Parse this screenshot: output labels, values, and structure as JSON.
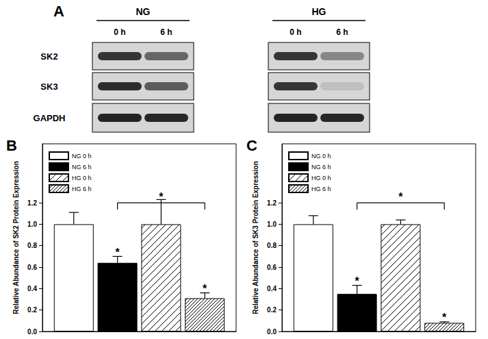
{
  "panel_a": {
    "label": "A",
    "blots": [
      {
        "group": "NG",
        "lanes": [
          "0 h",
          "6 h"
        ]
      },
      {
        "group": "HG",
        "lanes": [
          "0 h",
          "6 h"
        ]
      }
    ],
    "rows": [
      "SK2",
      "SK3",
      "GAPDH"
    ]
  },
  "chart_data": [
    {
      "type": "bar",
      "title": "B",
      "ylabel": "Relative Abundance of SK2 Protein Expression",
      "categories": [
        null
      ],
      "series": [
        {
          "name": "NG 0 h",
          "color": "#ffffff",
          "values": [
            1.0
          ],
          "errors": [
            0.11
          ]
        },
        {
          "name": "NG 6 h",
          "color": "#000000",
          "values": [
            0.64
          ],
          "errors": [
            0.06
          ]
        },
        {
          "name": "HG 0 h",
          "color": "#ffffff",
          "values": [
            1.0
          ],
          "errors": [
            0.23
          ]
        },
        {
          "name": "HG 6 h",
          "color": "#ffffff",
          "values": [
            0.31
          ],
          "errors": [
            0.05
          ]
        }
      ],
      "annotations": [
        {
          "series": "NG 6 h",
          "text": "*"
        },
        {
          "series": "HG 6 h",
          "text": "*"
        }
      ],
      "brackets": [
        {
          "from": "NG 6 h",
          "to": "HG 6 h",
          "y": 1.2,
          "text": "*"
        }
      ],
      "ylim": [
        0,
        1.75
      ],
      "yticks": [
        {
          "value": 0,
          "label": "0.0"
        },
        {
          "value": 0.2,
          "label": "0.2"
        },
        {
          "value": 0.4,
          "label": "0.4"
        },
        {
          "value": 0.6,
          "label": "0.6"
        },
        {
          "value": 0.8,
          "label": "0.8"
        },
        {
          "value": 1.0,
          "label": "1.0"
        },
        {
          "value": 1.2,
          "label": "1.2"
        }
      ],
      "grid": false,
      "legend": "upper left",
      "tick_labels": "y"
    },
    {
      "type": "bar",
      "title": "C",
      "ylabel": "Relative Abundance of SK3 Protein Expression",
      "categories": [
        null
      ],
      "series": [
        {
          "name": "NG 0 h",
          "color": "#ffffff",
          "values": [
            1.0
          ],
          "errors": [
            0.08
          ]
        },
        {
          "name": "NG 6 h",
          "color": "#000000",
          "values": [
            0.35
          ],
          "errors": [
            0.08
          ]
        },
        {
          "name": "HG 0 h",
          "color": "#ffffff",
          "values": [
            1.0
          ],
          "errors": [
            0.04
          ]
        },
        {
          "name": "HG 6 h",
          "color": "#ffffff",
          "values": [
            0.08
          ],
          "errors": [
            0.01
          ]
        }
      ],
      "annotations": [
        {
          "series": "NG 6 h",
          "text": "*"
        },
        {
          "series": "HG 6 h",
          "text": "*"
        }
      ],
      "brackets": [
        {
          "from": "NG 6 h",
          "to": "HG 6 h",
          "y": 1.2,
          "text": "*"
        }
      ],
      "ylim": [
        0,
        1.75
      ],
      "yticks": [
        {
          "value": 0,
          "label": "0.0"
        },
        {
          "value": 0.2,
          "label": "0.2"
        },
        {
          "value": 0.4,
          "label": "0.4"
        },
        {
          "value": 0.6,
          "label": "0.6"
        },
        {
          "value": 0.8,
          "label": "0.8"
        },
        {
          "value": 1.0,
          "label": "1.0"
        },
        {
          "value": 1.2,
          "label": "1.2"
        }
      ],
      "grid": false,
      "legend": "upper left",
      "tick_labels": "y"
    }
  ]
}
